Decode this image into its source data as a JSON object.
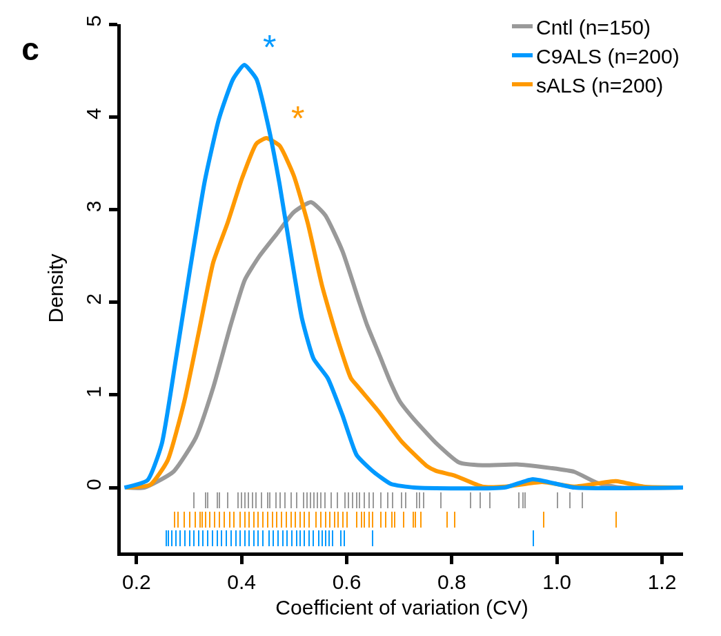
{
  "chart_data": {
    "type": "line",
    "title": "c",
    "xlabel": "Coefficient of variation (CV)",
    "ylabel": "Density",
    "xlim": [
      0.17,
      1.24
    ],
    "xticks": [
      0.2,
      {
        "value": 0.4,
        "label": "0.4"
      },
      {
        "value": 0.6,
        "label": "0.6"
      },
      {
        "value": 0.8,
        "label": "0.8"
      },
      {
        "value": 1.0,
        "label": "1.0"
      },
      {
        "value": 1.2,
        "label": "1.2"
      }
    ],
    "ylim": [
      -0.7,
      5
    ],
    "yticks": [
      0,
      1,
      2,
      3,
      4,
      5
    ],
    "legend": "top right",
    "marker": "none",
    "line_style": "solid",
    "series": [
      {
        "name": "Cntl (n=150)",
        "color": "#999999",
        "x": [
          0.18,
          0.215,
          0.27,
          0.313,
          0.346,
          0.379,
          0.406,
          0.433,
          0.466,
          0.499,
          0.532,
          0.559,
          0.592,
          0.624,
          0.639,
          0.663,
          0.683,
          0.701,
          0.726,
          0.75,
          0.77,
          0.814,
          0.858,
          0.924,
          0.989,
          1.033,
          1.077,
          1.121,
          1.24
        ],
        "values": [
          0,
          0,
          0.17,
          0.54,
          1.08,
          1.75,
          2.24,
          2.49,
          2.73,
          2.97,
          3.08,
          2.94,
          2.55,
          2.0,
          1.75,
          1.42,
          1.14,
          0.93,
          0.75,
          0.6,
          0.48,
          0.27,
          0.24,
          0.25,
          0.21,
          0.17,
          0.05,
          0,
          0
        ]
      },
      {
        "name": "sALS (n=200)",
        "color": "#ff9900",
        "x": [
          0.18,
          0.226,
          0.259,
          0.291,
          0.319,
          0.346,
          0.373,
          0.401,
          0.428,
          0.447,
          0.472,
          0.499,
          0.526,
          0.553,
          0.581,
          0.608,
          0.621,
          0.661,
          0.704,
          0.753,
          0.77,
          0.805,
          0.858,
          0.901,
          0.972,
          1.033,
          1.112,
          1.165,
          1.24
        ],
        "values": [
          0,
          0.03,
          0.29,
          0.93,
          1.69,
          2.43,
          2.85,
          3.34,
          3.71,
          3.77,
          3.69,
          3.37,
          2.85,
          2.18,
          1.63,
          1.18,
          1.09,
          0.82,
          0.5,
          0.23,
          0.18,
          0.13,
          0.01,
          0.01,
          0.06,
          0.01,
          0.07,
          0.01,
          0
        ]
      },
      {
        "name": "C9ALS (n=200)",
        "color": "#0099ff",
        "x": [
          0.177,
          0.221,
          0.248,
          0.275,
          0.302,
          0.33,
          0.357,
          0.384,
          0.405,
          0.428,
          0.45,
          0.472,
          0.493,
          0.515,
          0.537,
          0.564,
          0.592,
          0.619,
          0.651,
          0.684,
          0.728,
          0.9,
          0.954,
          1.033,
          1.24
        ],
        "values": [
          0,
          0.08,
          0.47,
          1.39,
          2.36,
          3.31,
          3.98,
          4.41,
          4.56,
          4.41,
          3.92,
          3.28,
          2.55,
          1.82,
          1.39,
          1.18,
          0.78,
          0.35,
          0.17,
          0.04,
          0,
          0,
          0.09,
          0,
          0
        ]
      },
      {
        "type": "bar",
        "color": "#999999",
        "x": [
          0.309,
          0.332,
          0.336,
          0.354,
          0.358,
          0.374,
          0.393,
          0.4,
          0.406,
          0.413,
          0.421,
          0.428,
          0.438,
          0.45,
          0.454,
          0.465,
          0.474,
          0.483,
          0.494,
          0.505,
          0.518,
          0.525,
          0.531,
          0.538,
          0.544,
          0.551,
          0.559,
          0.571,
          0.582,
          0.597,
          0.604,
          0.612,
          0.619,
          0.625,
          0.634,
          0.643,
          0.651,
          0.665,
          0.678,
          0.687,
          0.704,
          0.712,
          0.734,
          0.739,
          0.747,
          0.78,
          0.836,
          0.854,
          0.872,
          0.928,
          0.935,
          0.94,
          1.001,
          1.025,
          1.049
        ],
        "base": [
          -0.22,
          -0.22,
          -0.22,
          -0.22,
          -0.22,
          -0.22,
          -0.22,
          -0.22,
          -0.22,
          -0.22,
          -0.22,
          -0.22,
          -0.22,
          -0.22,
          -0.22,
          -0.22,
          -0.22,
          -0.22,
          -0.22,
          -0.22,
          -0.22,
          -0.22,
          -0.22,
          -0.22,
          -0.22,
          -0.22,
          -0.22,
          -0.22,
          -0.22,
          -0.22,
          -0.22,
          -0.22,
          -0.22,
          -0.22,
          -0.22,
          -0.22,
          -0.22,
          -0.22,
          -0.22,
          -0.22,
          -0.22,
          -0.22,
          -0.22,
          -0.22,
          -0.22,
          -0.22,
          -0.22,
          -0.22,
          -0.22,
          -0.22,
          -0.22,
          -0.22,
          -0.22,
          -0.22,
          -0.22
        ],
        "values": [
          0.17,
          0.17,
          0.17,
          0.17,
          0.17,
          0.17,
          0.17,
          0.17,
          0.17,
          0.17,
          0.17,
          0.17,
          0.17,
          0.17,
          0.17,
          0.17,
          0.17,
          0.17,
          0.17,
          0.17,
          0.17,
          0.17,
          0.17,
          0.17,
          0.17,
          0.17,
          0.17,
          0.17,
          0.17,
          0.17,
          0.17,
          0.17,
          0.17,
          0.17,
          0.17,
          0.17,
          0.17,
          0.17,
          0.17,
          0.17,
          0.17,
          0.17,
          0.17,
          0.17,
          0.17,
          0.17,
          0.17,
          0.17,
          0.17,
          0.17,
          0.17,
          0.17,
          0.17,
          0.17,
          0.17
        ]
      },
      {
        "type": "bar",
        "color": "#ff9900",
        "x": [
          0.272,
          0.279,
          0.291,
          0.301,
          0.312,
          0.321,
          0.325,
          0.332,
          0.34,
          0.349,
          0.358,
          0.367,
          0.378,
          0.386,
          0.397,
          0.406,
          0.415,
          0.424,
          0.432,
          0.441,
          0.45,
          0.459,
          0.467,
          0.476,
          0.485,
          0.494,
          0.503,
          0.511,
          0.52,
          0.529,
          0.542,
          0.551,
          0.56,
          0.568,
          0.577,
          0.584,
          0.593,
          0.601,
          0.619,
          0.628,
          0.634,
          0.643,
          0.65,
          0.665,
          0.674,
          0.686,
          0.691,
          0.709,
          0.727,
          0.731,
          0.741,
          0.791,
          0.806,
          0.975,
          1.113
        ],
        "base": [
          -0.43,
          -0.43,
          -0.43,
          -0.43,
          -0.43,
          -0.43,
          -0.43,
          -0.43,
          -0.43,
          -0.43,
          -0.43,
          -0.43,
          -0.43,
          -0.43,
          -0.43,
          -0.43,
          -0.43,
          -0.43,
          -0.43,
          -0.43,
          -0.43,
          -0.43,
          -0.43,
          -0.43,
          -0.43,
          -0.43,
          -0.43,
          -0.43,
          -0.43,
          -0.43,
          -0.43,
          -0.43,
          -0.43,
          -0.43,
          -0.43,
          -0.43,
          -0.43,
          -0.43,
          -0.43,
          -0.43,
          -0.43,
          -0.43,
          -0.43,
          -0.43,
          -0.43,
          -0.43,
          -0.43,
          -0.43,
          -0.43,
          -0.43,
          -0.43,
          -0.43,
          -0.43,
          -0.43,
          -0.43
        ],
        "values": [
          0.17,
          0.17,
          0.17,
          0.17,
          0.17,
          0.17,
          0.17,
          0.17,
          0.17,
          0.17,
          0.17,
          0.17,
          0.17,
          0.17,
          0.17,
          0.17,
          0.17,
          0.17,
          0.17,
          0.17,
          0.17,
          0.17,
          0.17,
          0.17,
          0.17,
          0.17,
          0.17,
          0.17,
          0.17,
          0.17,
          0.17,
          0.17,
          0.17,
          0.17,
          0.17,
          0.17,
          0.17,
          0.17,
          0.17,
          0.17,
          0.17,
          0.17,
          0.17,
          0.17,
          0.17,
          0.17,
          0.17,
          0.17,
          0.17,
          0.17,
          0.17,
          0.17,
          0.17,
          0.17,
          0.17
        ]
      },
      {
        "type": "bar",
        "color": "#0099ff",
        "x": [
          0.257,
          0.261,
          0.267,
          0.275,
          0.283,
          0.292,
          0.301,
          0.31,
          0.318,
          0.327,
          0.336,
          0.345,
          0.354,
          0.362,
          0.371,
          0.38,
          0.389,
          0.397,
          0.406,
          0.415,
          0.424,
          0.432,
          0.441,
          0.452,
          0.461,
          0.47,
          0.479,
          0.487,
          0.496,
          0.505,
          0.511,
          0.52,
          0.528,
          0.536,
          0.547,
          0.553,
          0.56,
          0.567,
          0.573,
          0.589,
          0.595,
          0.649,
          0.955
        ],
        "base": [
          -0.63,
          -0.63,
          -0.63,
          -0.63,
          -0.63,
          -0.63,
          -0.63,
          -0.63,
          -0.63,
          -0.63,
          -0.63,
          -0.63,
          -0.63,
          -0.63,
          -0.63,
          -0.63,
          -0.63,
          -0.63,
          -0.63,
          -0.63,
          -0.63,
          -0.63,
          -0.63,
          -0.63,
          -0.63,
          -0.63,
          -0.63,
          -0.63,
          -0.63,
          -0.63,
          -0.63,
          -0.63,
          -0.63,
          -0.63,
          -0.63,
          -0.63,
          -0.63,
          -0.63,
          -0.63,
          -0.63,
          -0.63,
          -0.63,
          -0.63
        ],
        "values": [
          0.17,
          0.17,
          0.17,
          0.17,
          0.17,
          0.17,
          0.17,
          0.17,
          0.17,
          0.17,
          0.17,
          0.17,
          0.17,
          0.17,
          0.17,
          0.17,
          0.17,
          0.17,
          0.17,
          0.17,
          0.17,
          0.17,
          0.17,
          0.17,
          0.17,
          0.17,
          0.17,
          0.17,
          0.17,
          0.17,
          0.17,
          0.17,
          0.17,
          0.17,
          0.17,
          0.17,
          0.17,
          0.17,
          0.17,
          0.17,
          0.17,
          0.17,
          0.17
        ]
      }
    ],
    "annotations": [
      "*",
      "*"
    ]
  }
}
